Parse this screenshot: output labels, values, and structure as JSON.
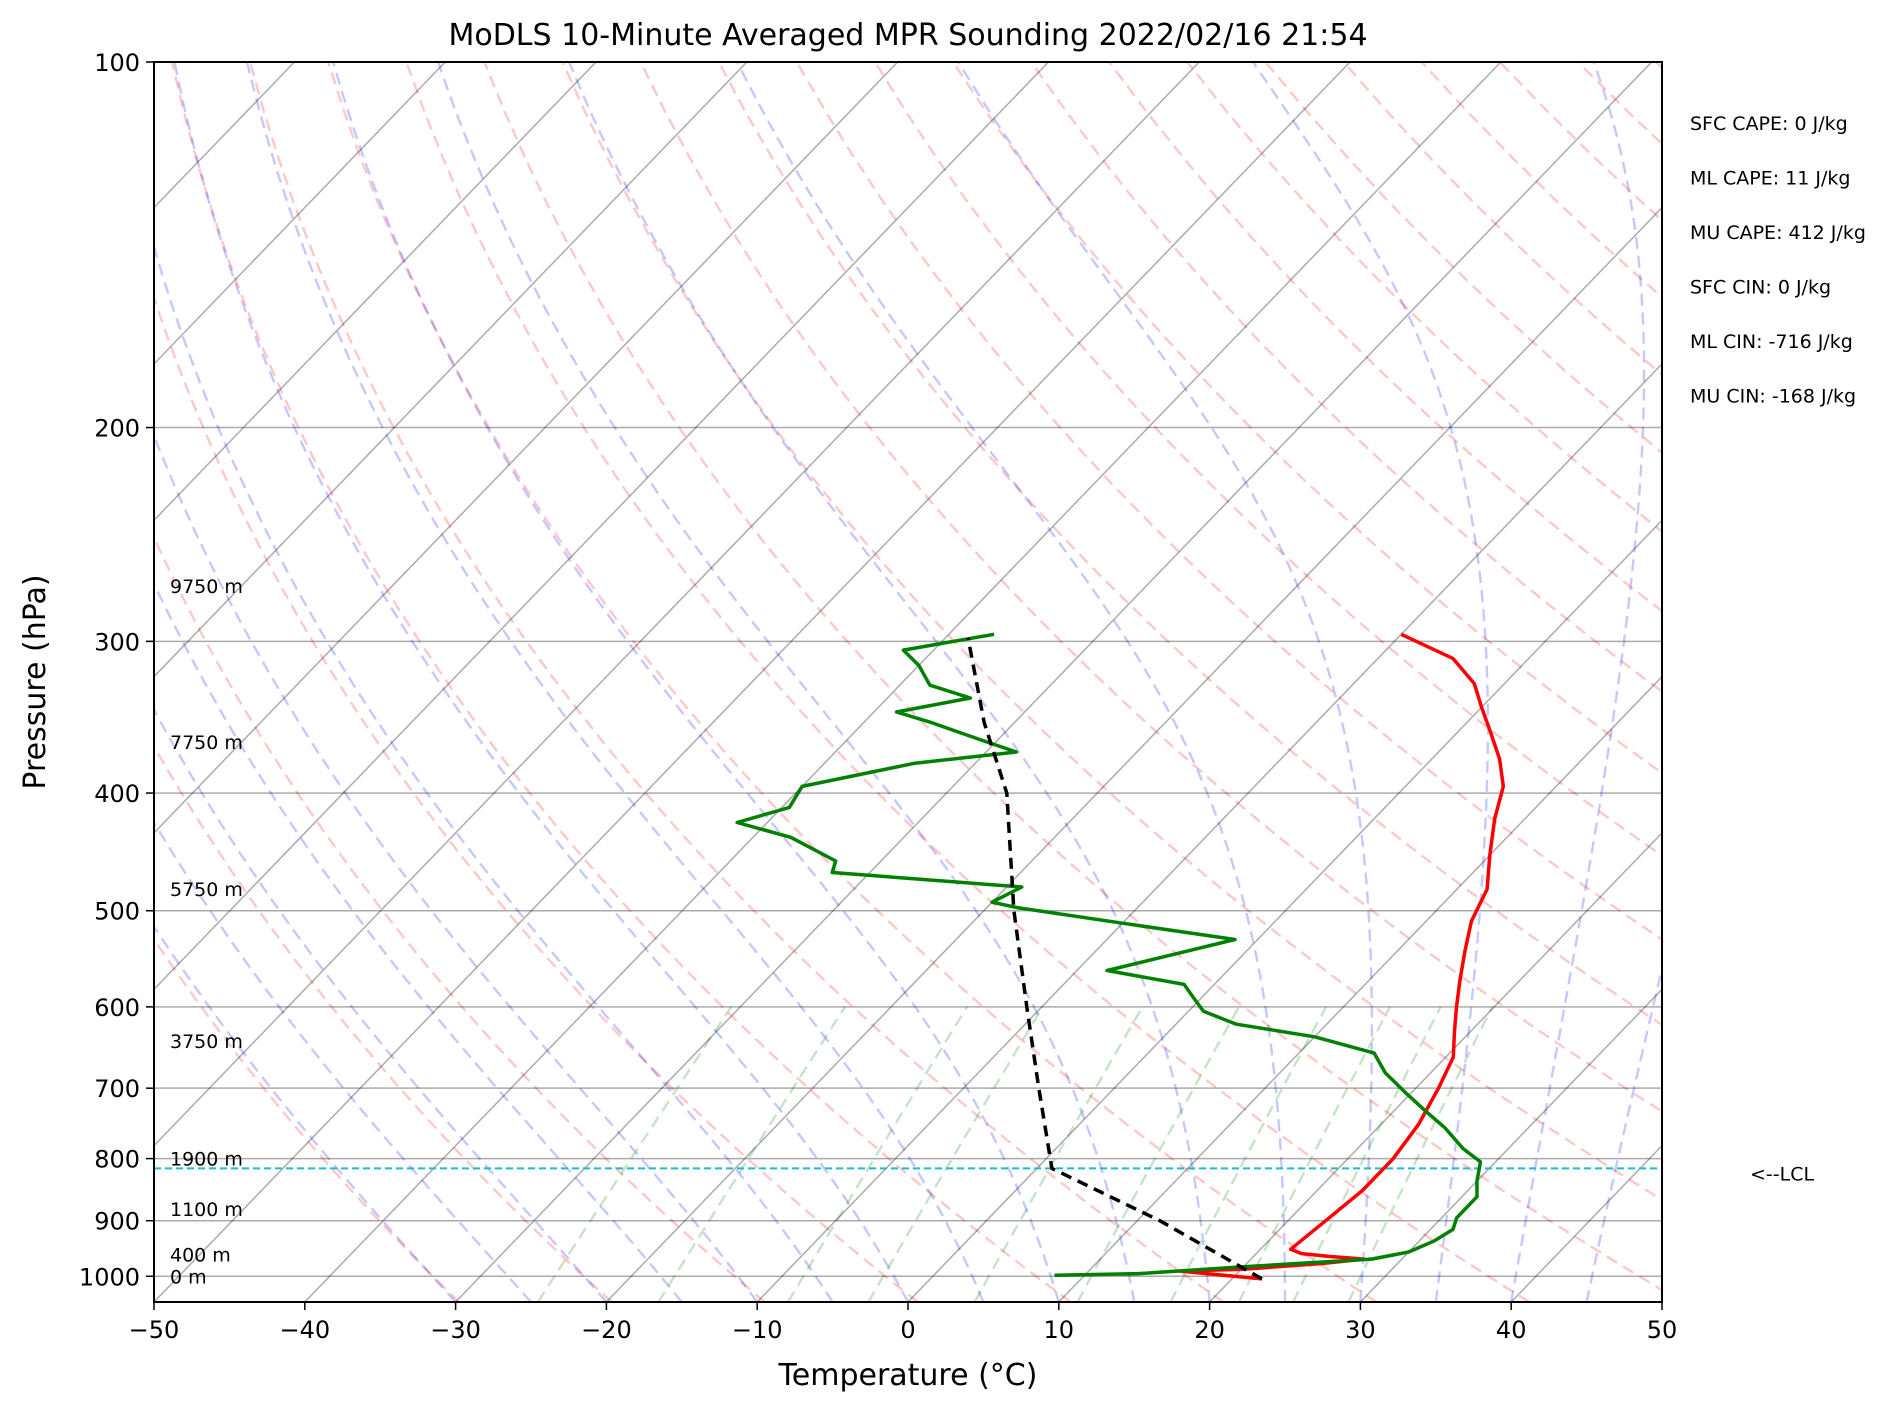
{
  "chart_data": {
    "type": "line",
    "subtype": "skew-T log-p sounding",
    "title": "MoDLS 10-Minute Averaged MPR Sounding 2022/02/16 21:54",
    "xlabel": "Temperature (°C)",
    "ylabel": "Pressure (hPa)",
    "xlim": [
      -50,
      50
    ],
    "ylim": [
      1050,
      100
    ],
    "y_scale": "log",
    "grid": true,
    "x_ticks": [
      -50,
      -40,
      -30,
      -20,
      -10,
      0,
      10,
      20,
      30,
      40,
      50
    ],
    "x_tick_labels": [
      "−50",
      "−40",
      "−30",
      "−20",
      "−10",
      "0",
      "10",
      "20",
      "30",
      "40",
      "50"
    ],
    "y_ticks": [
      100,
      200,
      300,
      400,
      500,
      600,
      700,
      800,
      900,
      1000
    ],
    "y_tick_labels": [
      "100",
      "200",
      "300",
      "400",
      "500",
      "600",
      "700",
      "800",
      "900",
      "1000"
    ],
    "height_labels": [
      {
        "p": 1000,
        "text": "0 m"
      },
      {
        "p": 960,
        "text": "400 m"
      },
      {
        "p": 880,
        "text": "1100 m"
      },
      {
        "p": 800,
        "text": "1900 m"
      },
      {
        "p": 640,
        "text": "3750 m"
      },
      {
        "p": 480,
        "text": "5750 m"
      },
      {
        "p": 363,
        "text": "7750 m"
      },
      {
        "p": 270,
        "text": "9750 m"
      }
    ],
    "lcl": {
      "p": 815,
      "label": "<--LCL",
      "color": "#17becf"
    },
    "stats": [
      "SFC CAPE: 0 J/kg",
      "ML CAPE: 11 J/kg",
      "MU CAPE: 412 J/kg",
      "SFC CIN: 0 J/kg",
      "ML CIN: -716 J/kg",
      "MU CIN: -168 J/kg"
    ],
    "series": [
      {
        "color": "#ff0000",
        "points": [
          [
            22,
            1005
          ],
          [
            16,
            990
          ],
          [
            20,
            987
          ],
          [
            25,
            976
          ],
          [
            27.5,
            968
          ],
          [
            25,
            963
          ],
          [
            23,
            958
          ],
          [
            22,
            950
          ],
          [
            22.5,
            900
          ],
          [
            23,
            850
          ],
          [
            23,
            800
          ],
          [
            22.5,
            750
          ],
          [
            21.5,
            700
          ],
          [
            20.5,
            660
          ],
          [
            19,
            630
          ],
          [
            17.5,
            600
          ],
          [
            16,
            570
          ],
          [
            14.5,
            540
          ],
          [
            13,
            510
          ],
          [
            12,
            480
          ],
          [
            10,
            450
          ],
          [
            8,
            420
          ],
          [
            6.5,
            395
          ],
          [
            4.5,
            375
          ],
          [
            2,
            355
          ],
          [
            0,
            340
          ],
          [
            -2,
            325
          ],
          [
            -5,
            310
          ],
          [
            -10,
            296
          ]
        ]
      },
      {
        "color": "#008000",
        "points": [
          [
            8,
            998
          ],
          [
            13.5,
            995
          ],
          [
            20,
            982
          ],
          [
            24,
            975
          ],
          [
            28,
            968
          ],
          [
            30,
            955
          ],
          [
            31,
            935
          ],
          [
            31.5,
            915
          ],
          [
            31,
            895
          ],
          [
            31,
            880
          ],
          [
            31,
            860
          ],
          [
            30,
            835
          ],
          [
            29,
            805
          ],
          [
            27,
            785
          ],
          [
            24.5,
            755
          ],
          [
            22,
            730
          ],
          [
            19.5,
            705
          ],
          [
            17,
            680
          ],
          [
            15,
            655
          ],
          [
            10,
            635
          ],
          [
            4,
            620
          ],
          [
            1,
            605
          ],
          [
            -0.5,
            590
          ],
          [
            -2,
            575
          ],
          [
            -8,
            560
          ],
          [
            -5,
            545
          ],
          [
            -1.5,
            528
          ],
          [
            -10,
            512
          ],
          [
            -18,
            497
          ],
          [
            -20,
            492
          ],
          [
            -19,
            478
          ],
          [
            -32.5,
            465
          ],
          [
            -33,
            455
          ],
          [
            -37.5,
            435
          ],
          [
            -42,
            423
          ],
          [
            -39.5,
            411
          ],
          [
            -40,
            395
          ],
          [
            -34,
            378
          ],
          [
            -28,
            370
          ],
          [
            -31,
            362
          ],
          [
            -35.5,
            350
          ],
          [
            -38.5,
            343
          ],
          [
            -34.5,
            334
          ],
          [
            -38,
            326
          ],
          [
            -40,
            314
          ],
          [
            -42,
            305
          ],
          [
            -37,
            296
          ]
        ]
      },
      {
        "color": "#000000",
        "dashed": true,
        "points": [
          [
            22,
            1005
          ],
          [
            11.5,
            900
          ],
          [
            1,
            815
          ],
          [
            -5,
            700
          ],
          [
            -11,
            600
          ],
          [
            -18,
            500
          ],
          [
            -26,
            400
          ],
          [
            -32,
            350
          ],
          [
            -38.5,
            298
          ]
        ]
      }
    ]
  }
}
